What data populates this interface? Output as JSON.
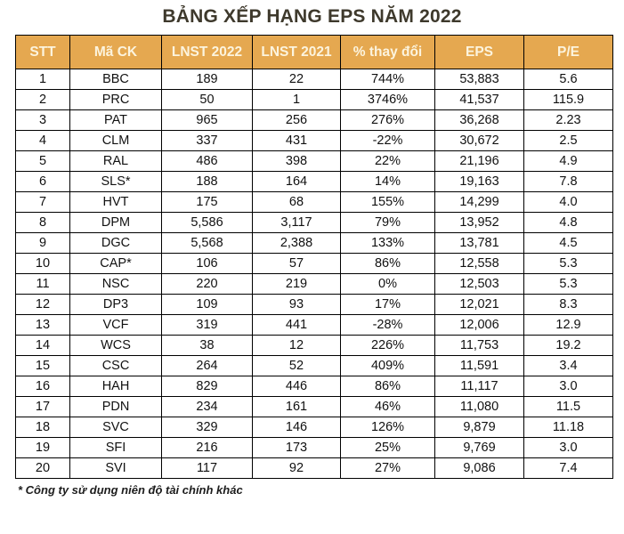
{
  "title": "BẢNG XẾP HẠNG EPS NĂM 2022",
  "colors": {
    "header_bg": "#E5A850",
    "header_text": "#FCF4DE",
    "title_text": "#3E392C",
    "border": "#000000"
  },
  "table": {
    "columns": [
      "STT",
      "Mã CK",
      "LNST 2022",
      "LNST 2021",
      "% thay đổi",
      "EPS",
      "P/E"
    ],
    "rows": [
      [
        "1",
        "BBC",
        "189",
        "22",
        "744%",
        "53,883",
        "5.6"
      ],
      [
        "2",
        "PRC",
        "50",
        "1",
        "3746%",
        "41,537",
        "115.9"
      ],
      [
        "3",
        "PAT",
        "965",
        "256",
        "276%",
        "36,268",
        "2.23"
      ],
      [
        "4",
        "CLM",
        "337",
        "431",
        "-22%",
        "30,672",
        "2.5"
      ],
      [
        "5",
        "RAL",
        "486",
        "398",
        "22%",
        "21,196",
        "4.9"
      ],
      [
        "6",
        "SLS*",
        "188",
        "164",
        "14%",
        "19,163",
        "7.8"
      ],
      [
        "7",
        "HVT",
        "175",
        "68",
        "155%",
        "14,299",
        "4.0"
      ],
      [
        "8",
        "DPM",
        "5,586",
        "3,117",
        "79%",
        "13,952",
        "4.8"
      ],
      [
        "9",
        "DGC",
        "5,568",
        "2,388",
        "133%",
        "13,781",
        "4.5"
      ],
      [
        "10",
        "CAP*",
        "106",
        "57",
        "86%",
        "12,558",
        "5.3"
      ],
      [
        "11",
        "NSC",
        "220",
        "219",
        "0%",
        "12,503",
        "5.3"
      ],
      [
        "12",
        "DP3",
        "109",
        "93",
        "17%",
        "12,021",
        "8.3"
      ],
      [
        "13",
        "VCF",
        "319",
        "441",
        "-28%",
        "12,006",
        "12.9"
      ],
      [
        "14",
        "WCS",
        "38",
        "12",
        "226%",
        "11,753",
        "19.2"
      ],
      [
        "15",
        "CSC",
        "264",
        "52",
        "409%",
        "11,591",
        "3.4"
      ],
      [
        "16",
        "HAH",
        "829",
        "446",
        "86%",
        "11,117",
        "3.0"
      ],
      [
        "17",
        "PDN",
        "234",
        "161",
        "46%",
        "11,080",
        "11.5"
      ],
      [
        "18",
        "SVC",
        "329",
        "146",
        "126%",
        "9,879",
        "11.18"
      ],
      [
        "19",
        "SFI",
        "216",
        "173",
        "25%",
        "9,769",
        "3.0"
      ],
      [
        "20",
        "SVI",
        "117",
        "92",
        "27%",
        "9,086",
        "7.4"
      ]
    ]
  },
  "footnote": "* Công ty sử dụng niên độ tài chính khác"
}
